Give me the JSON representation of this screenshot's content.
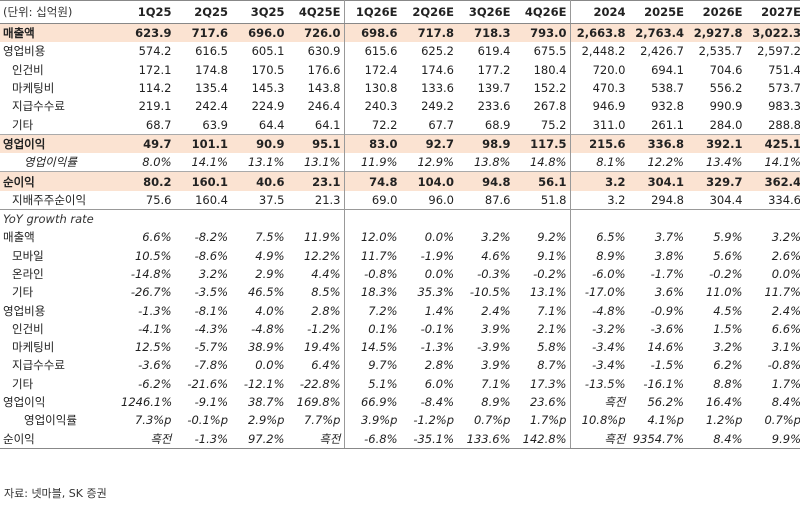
{
  "unit_label": "(단위: 십억원)",
  "columns": [
    "1Q25",
    "2Q25",
    "3Q25",
    "4Q25E",
    "1Q26E",
    "2Q26E",
    "3Q26E",
    "4Q26E",
    "2024",
    "2025E",
    "2026E",
    "2027E"
  ],
  "rows": [
    {
      "label": "매출액",
      "type": "major",
      "values": [
        "623.9",
        "717.6",
        "696.0",
        "726.0",
        "698.6",
        "717.8",
        "718.3",
        "793.0",
        "2,663.8",
        "2,763.4",
        "2,927.8",
        "3,022.3"
      ]
    },
    {
      "label": "영업비용",
      "type": "normal",
      "values": [
        "574.2",
        "616.5",
        "605.1",
        "630.9",
        "615.6",
        "625.2",
        "619.4",
        "675.5",
        "2,448.2",
        "2,426.7",
        "2,535.7",
        "2,597.2"
      ]
    },
    {
      "label": "인건비",
      "type": "ind1",
      "values": [
        "172.1",
        "174.8",
        "170.5",
        "176.6",
        "172.4",
        "174.6",
        "177.2",
        "180.4",
        "720.0",
        "694.1",
        "704.6",
        "751.4"
      ]
    },
    {
      "label": "마케팅비",
      "type": "ind1",
      "values": [
        "114.2",
        "135.4",
        "145.3",
        "143.8",
        "130.8",
        "133.6",
        "139.7",
        "152.2",
        "470.3",
        "538.7",
        "556.2",
        "573.7"
      ]
    },
    {
      "label": "지급수수료",
      "type": "ind1",
      "values": [
        "219.1",
        "242.4",
        "224.9",
        "246.4",
        "240.3",
        "249.2",
        "233.6",
        "267.8",
        "946.9",
        "932.8",
        "990.9",
        "983.3"
      ]
    },
    {
      "label": "기타",
      "type": "ind1",
      "values": [
        "68.7",
        "63.9",
        "64.4",
        "64.1",
        "72.2",
        "67.7",
        "68.9",
        "75.2",
        "311.0",
        "261.1",
        "284.0",
        "288.8"
      ]
    },
    {
      "label": "영업이익",
      "type": "major",
      "values": [
        "49.7",
        "101.1",
        "90.9",
        "95.1",
        "83.0",
        "92.7",
        "98.9",
        "117.5",
        "215.6",
        "336.8",
        "392.1",
        "425.1"
      ]
    },
    {
      "label": "영업이익률",
      "type": "sub",
      "values": [
        "8.0%",
        "14.1%",
        "13.1%",
        "13.1%",
        "11.9%",
        "12.9%",
        "13.8%",
        "14.8%",
        "8.1%",
        "12.2%",
        "13.4%",
        "14.1%"
      ]
    },
    {
      "label": "순이익",
      "type": "major",
      "values": [
        "80.2",
        "160.1",
        "40.6",
        "23.1",
        "74.8",
        "104.0",
        "94.8",
        "56.1",
        "3.2",
        "304.1",
        "329.7",
        "362.4"
      ]
    },
    {
      "label": "지배주주순이익",
      "type": "ind1",
      "values": [
        "75.6",
        "160.4",
        "37.5",
        "21.3",
        "69.0",
        "96.0",
        "87.6",
        "51.8",
        "3.2",
        "294.8",
        "304.4",
        "334.6"
      ]
    },
    {
      "label": "YoY growth rate",
      "type": "section",
      "values": [
        "",
        "",
        "",
        "",
        "",
        "",
        "",
        "",
        "",
        "",
        "",
        ""
      ]
    },
    {
      "label": "매출액",
      "type": "gmain",
      "values": [
        "6.6%",
        "-8.2%",
        "7.5%",
        "11.9%",
        "12.0%",
        "0.0%",
        "3.2%",
        "9.2%",
        "6.5%",
        "3.7%",
        "5.9%",
        "3.2%"
      ]
    },
    {
      "label": "모바일",
      "type": "gsub1",
      "values": [
        "10.5%",
        "-8.6%",
        "4.9%",
        "12.2%",
        "11.7%",
        "-1.9%",
        "4.6%",
        "9.1%",
        "8.9%",
        "3.8%",
        "5.6%",
        "2.6%"
      ]
    },
    {
      "label": "온라인",
      "type": "gsub1",
      "values": [
        "-14.8%",
        "3.2%",
        "2.9%",
        "4.4%",
        "-0.8%",
        "0.0%",
        "-0.3%",
        "-0.2%",
        "-6.0%",
        "-1.7%",
        "-0.2%",
        "0.0%"
      ]
    },
    {
      "label": "기타",
      "type": "gsub1",
      "values": [
        "-26.7%",
        "-3.5%",
        "46.5%",
        "8.5%",
        "18.3%",
        "35.3%",
        "-10.5%",
        "13.1%",
        "-17.0%",
        "3.6%",
        "11.0%",
        "11.7%"
      ]
    },
    {
      "label": "영업비용",
      "type": "gmain",
      "values": [
        "-1.3%",
        "-8.1%",
        "4.0%",
        "2.8%",
        "7.2%",
        "1.4%",
        "2.4%",
        "7.1%",
        "-4.8%",
        "-0.9%",
        "4.5%",
        "2.4%"
      ]
    },
    {
      "label": "인건비",
      "type": "gsub1",
      "values": [
        "-4.1%",
        "-4.3%",
        "-4.8%",
        "-1.2%",
        "0.1%",
        "-0.1%",
        "3.9%",
        "2.1%",
        "-3.2%",
        "-3.6%",
        "1.5%",
        "6.6%"
      ]
    },
    {
      "label": "마케팅비",
      "type": "gsub1",
      "values": [
        "12.5%",
        "-5.7%",
        "38.9%",
        "19.4%",
        "14.5%",
        "-1.3%",
        "-3.9%",
        "5.8%",
        "-3.4%",
        "14.6%",
        "3.2%",
        "3.1%"
      ]
    },
    {
      "label": "지급수수료",
      "type": "gsub1",
      "values": [
        "-3.6%",
        "-7.8%",
        "0.0%",
        "6.4%",
        "9.7%",
        "2.8%",
        "3.9%",
        "8.7%",
        "-3.4%",
        "-1.5%",
        "6.2%",
        "-0.8%"
      ]
    },
    {
      "label": "기타",
      "type": "gsub1",
      "values": [
        "-6.2%",
        "-21.6%",
        "-12.1%",
        "-22.8%",
        "5.1%",
        "6.0%",
        "7.1%",
        "17.3%",
        "-13.5%",
        "-16.1%",
        "8.8%",
        "1.7%"
      ]
    },
    {
      "label": "영업이익",
      "type": "gmain",
      "values": [
        "1246.1%",
        "-9.1%",
        "38.7%",
        "169.8%",
        "66.9%",
        "-8.4%",
        "8.9%",
        "23.6%",
        "흑전",
        "56.2%",
        "16.4%",
        "8.4%"
      ]
    },
    {
      "label": "영업이익률",
      "type": "gsub2",
      "values": [
        "7.3%p",
        "-0.1%p",
        "2.9%p",
        "7.7%p",
        "3.9%p",
        "-1.2%p",
        "0.7%p",
        "1.7%p",
        "10.8%p",
        "4.1%p",
        "1.2%p",
        "0.7%p"
      ]
    },
    {
      "label": "순이익",
      "type": "gmain",
      "values": [
        "흑전",
        "-1.3%",
        "97.2%",
        "흑전",
        "-6.8%",
        "-35.1%",
        "133.6%",
        "142.8%",
        "흑전",
        "9354.7%",
        "8.4%",
        "9.9%"
      ]
    }
  ],
  "source": "자료: 넷마블, SK 증권"
}
